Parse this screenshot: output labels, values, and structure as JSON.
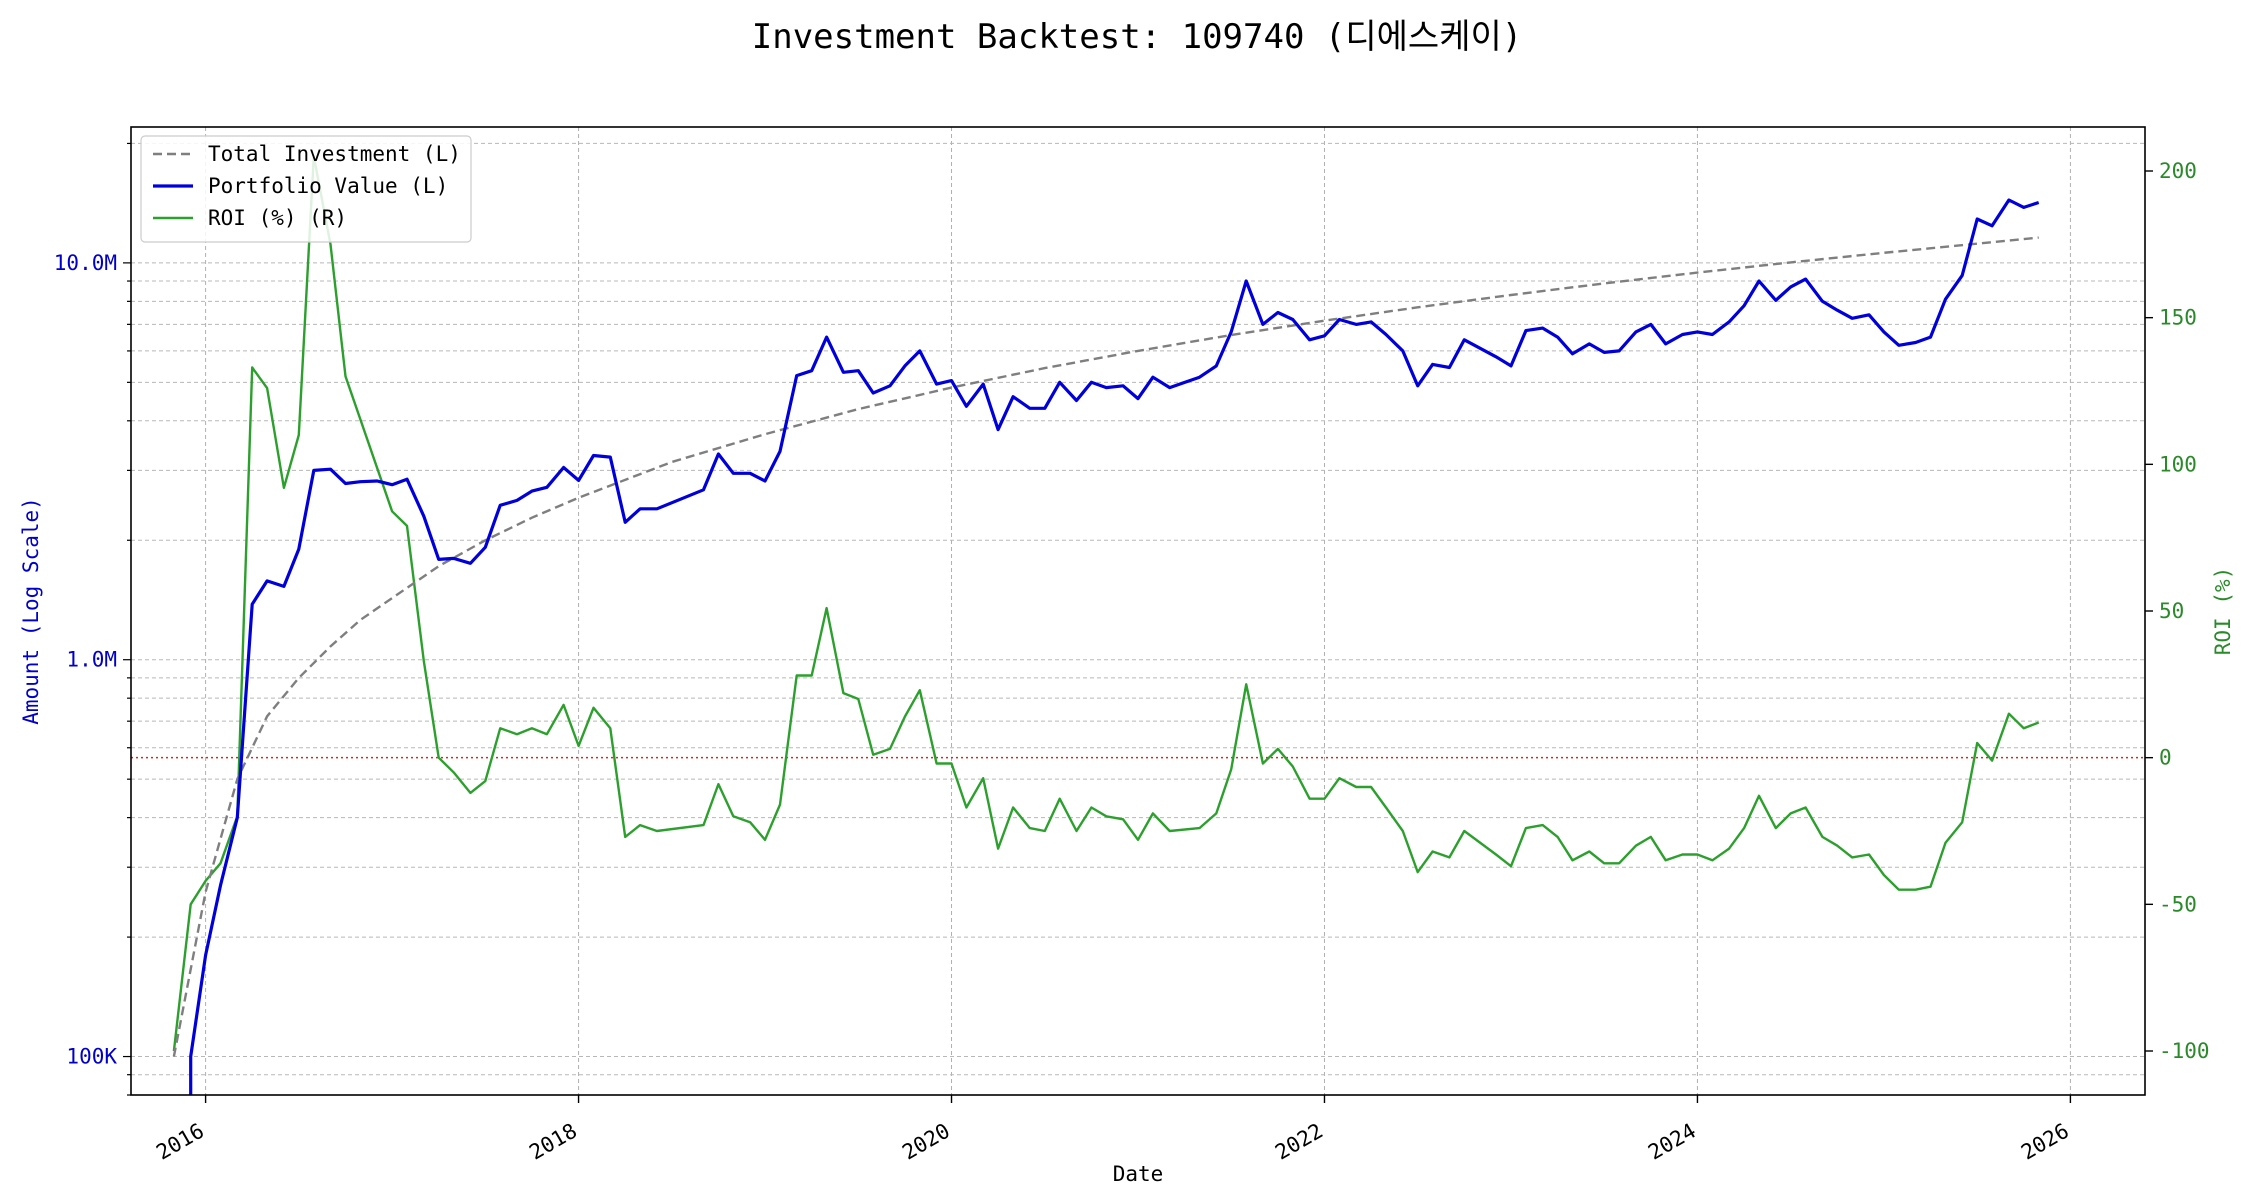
{
  "chart_data": {
    "type": "line",
    "title": "Investment Backtest: 109740 (디에스케이)",
    "xlabel": "Date",
    "ylabel_left": "Amount (Log Scale)",
    "ylabel_right": "ROI (%)",
    "x_range": [
      2015.6,
      2026.4
    ],
    "x_ticks": [
      "2016",
      "2018",
      "2020",
      "2022",
      "2024",
      "2026"
    ],
    "y_left_scale": "log",
    "y_left_range": [
      80000,
      22000000
    ],
    "y_left_ticks": [
      {
        "value": 100000,
        "label": "100K"
      },
      {
        "value": 1000000,
        "label": "1.0M"
      },
      {
        "value": 10000000,
        "label": "10.0M"
      }
    ],
    "y_right_range": [
      -115,
      215
    ],
    "y_right_ticks": [
      -100,
      -50,
      0,
      50,
      100,
      150,
      200
    ],
    "grid": true,
    "legend_position": "top-left",
    "zero_roi_line": {
      "value": 0,
      "color": "#d62728",
      "style": "dotted"
    },
    "series": [
      {
        "name": "Total Investment (L)",
        "axis": "left",
        "color": "#7f7f7f",
        "style": "dashed",
        "x": [
          2015.83,
          2016.0,
          2016.17,
          2016.33,
          2016.5,
          2016.67,
          2016.83,
          2017.0,
          2017.25,
          2017.5,
          2017.75,
          2018.0,
          2018.5,
          2019.0,
          2019.5,
          2020.0,
          2020.5,
          2021.0,
          2021.5,
          2022.0,
          2022.5,
          2023.0,
          2023.5,
          2024.0,
          2024.5,
          2025.0,
          2025.5,
          2025.83
        ],
        "values": [
          100000,
          260000,
          500000,
          720000,
          900000,
          1080000,
          1260000,
          1430000,
          1720000,
          2000000,
          2280000,
          2560000,
          3150000,
          3700000,
          4280000,
          4850000,
          5430000,
          6000000,
          6580000,
          7150000,
          7730000,
          8300000,
          8880000,
          9450000,
          10030000,
          10600000,
          11180000,
          11580000
        ]
      },
      {
        "name": "Portfolio Value (L)",
        "axis": "left",
        "color": "#0000dd",
        "style": "solid",
        "x": [
          2015.92,
          2015.92,
          2016.0,
          2016.08,
          2016.17,
          2016.25,
          2016.33,
          2016.42,
          2016.5,
          2016.58,
          2016.67,
          2016.75,
          2016.83,
          2016.92,
          2017.0,
          2017.08,
          2017.17,
          2017.25,
          2017.33,
          2017.42,
          2017.5,
          2017.58,
          2017.67,
          2017.75,
          2017.83,
          2017.92,
          2018.0,
          2018.08,
          2018.17,
          2018.25,
          2018.33,
          2018.42,
          2018.67,
          2018.75,
          2018.83,
          2018.92,
          2019.0,
          2019.08,
          2019.17,
          2019.25,
          2019.33,
          2019.42,
          2019.5,
          2019.58,
          2019.67,
          2019.75,
          2019.83,
          2019.92,
          2020.0,
          2020.08,
          2020.17,
          2020.25,
          2020.33,
          2020.42,
          2020.5,
          2020.58,
          2020.67,
          2020.75,
          2020.83,
          2020.92,
          2021.0,
          2021.08,
          2021.17,
          2021.33,
          2021.42,
          2021.5,
          2021.58,
          2021.67,
          2021.75,
          2021.83,
          2021.92,
          2022.0,
          2022.08,
          2022.17,
          2022.25,
          2022.33,
          2022.42,
          2022.5,
          2022.58,
          2022.67,
          2022.75,
          2022.92,
          2023.0,
          2023.08,
          2023.17,
          2023.25,
          2023.33,
          2023.42,
          2023.5,
          2023.58,
          2023.67,
          2023.75,
          2023.83,
          2023.92,
          2024.0,
          2024.08,
          2024.17,
          2024.25,
          2024.33,
          2024.42,
          2024.5,
          2024.58,
          2024.67,
          2024.75,
          2024.83,
          2024.92,
          2025.0,
          2025.08,
          2025.17,
          2025.25,
          2025.33,
          2025.42,
          2025.5,
          2025.58,
          2025.67,
          2025.75,
          2025.83
        ],
        "values": [
          60000,
          100000,
          180000,
          270000,
          400000,
          1380000,
          1580000,
          1530000,
          1900000,
          3000000,
          3020000,
          2780000,
          2810000,
          2820000,
          2760000,
          2850000,
          2300000,
          1790000,
          1800000,
          1750000,
          1920000,
          2450000,
          2520000,
          2660000,
          2720000,
          3050000,
          2830000,
          3270000,
          3240000,
          2220000,
          2400000,
          2400000,
          2680000,
          3300000,
          2950000,
          2950000,
          2820000,
          3350000,
          5200000,
          5350000,
          6500000,
          5300000,
          5350000,
          4700000,
          4900000,
          5500000,
          6000000,
          4950000,
          5050000,
          4350000,
          4950000,
          3800000,
          4600000,
          4300000,
          4300000,
          5000000,
          4500000,
          5000000,
          4850000,
          4900000,
          4550000,
          5150000,
          4850000,
          5150000,
          5500000,
          6700000,
          9000000,
          7000000,
          7500000,
          7200000,
          6400000,
          6550000,
          7200000,
          7000000,
          7100000,
          6600000,
          6000000,
          4900000,
          5550000,
          5450000,
          6400000,
          5800000,
          5500000,
          6750000,
          6850000,
          6500000,
          5900000,
          6250000,
          5950000,
          6000000,
          6700000,
          7000000,
          6250000,
          6600000,
          6700000,
          6600000,
          7100000,
          7800000,
          9000000,
          8050000,
          8700000,
          9100000,
          8000000,
          7600000,
          7250000,
          7400000,
          6700000,
          6200000,
          6300000,
          6500000,
          8100000,
          9300000,
          12900000,
          12400000,
          14400000,
          13800000,
          14200000
        ]
      },
      {
        "name": "ROI (%) (R)",
        "axis": "right",
        "color": "#2ca02c",
        "style": "solid",
        "x": [
          2015.83,
          2015.92,
          2016.0,
          2016.08,
          2016.17,
          2016.25,
          2016.33,
          2016.42,
          2016.5,
          2016.58,
          2016.67,
          2016.75,
          2017.0,
          2017.08,
          2017.17,
          2017.25,
          2017.33,
          2017.42,
          2017.5,
          2017.58,
          2017.67,
          2017.75,
          2017.83,
          2017.92,
          2018.0,
          2018.08,
          2018.17,
          2018.25,
          2018.33,
          2018.42,
          2018.67,
          2018.75,
          2018.83,
          2018.92,
          2019.0,
          2019.08,
          2019.17,
          2019.25,
          2019.33,
          2019.42,
          2019.5,
          2019.58,
          2019.67,
          2019.75,
          2019.83,
          2019.92,
          2020.0,
          2020.08,
          2020.17,
          2020.25,
          2020.33,
          2020.42,
          2020.5,
          2020.58,
          2020.67,
          2020.75,
          2020.83,
          2020.92,
          2021.0,
          2021.08,
          2021.17,
          2021.33,
          2021.42,
          2021.5,
          2021.58,
          2021.67,
          2021.75,
          2021.83,
          2021.92,
          2022.0,
          2022.08,
          2022.17,
          2022.25,
          2022.33,
          2022.42,
          2022.5,
          2022.58,
          2022.67,
          2022.75,
          2022.92,
          2023.0,
          2023.08,
          2023.17,
          2023.25,
          2023.33,
          2023.42,
          2023.5,
          2023.58,
          2023.67,
          2023.75,
          2023.83,
          2023.92,
          2024.0,
          2024.08,
          2024.17,
          2024.25,
          2024.33,
          2024.42,
          2024.5,
          2024.58,
          2024.67,
          2024.75,
          2024.83,
          2024.92,
          2025.0,
          2025.08,
          2025.17,
          2025.25,
          2025.33,
          2025.42,
          2025.5,
          2025.58,
          2025.67,
          2025.75,
          2025.83
        ],
        "values": [
          -100,
          -50,
          -42,
          -36,
          -20,
          133,
          126,
          92,
          110,
          205,
          175,
          130,
          84,
          79,
          33,
          0,
          -5,
          -12,
          -8,
          10,
          8,
          10,
          8,
          18,
          4,
          17,
          10,
          -27,
          -23,
          -25,
          -23,
          -9,
          -20,
          -22,
          -28,
          -16,
          28,
          28,
          51,
          22,
          20,
          1,
          3,
          14,
          23,
          -2,
          -2,
          -17,
          -7,
          -31,
          -17,
          -24,
          -25,
          -14,
          -25,
          -17,
          -20,
          -21,
          -28,
          -19,
          -25,
          -24,
          -19,
          -4,
          25,
          -2,
          3,
          -3,
          -14,
          -14,
          -7,
          -10,
          -10,
          -17,
          -25,
          -39,
          -32,
          -34,
          -25,
          -33,
          -37,
          -24,
          -23,
          -27,
          -35,
          -32,
          -36,
          -36,
          -30,
          -27,
          -35,
          -33,
          -33,
          -35,
          -31,
          -24,
          -13,
          -24,
          -19,
          -17,
          -27,
          -30,
          -34,
          -33,
          -40,
          -45,
          -45,
          -44,
          -29,
          -22,
          5,
          -1,
          15,
          10,
          12
        ]
      }
    ]
  }
}
